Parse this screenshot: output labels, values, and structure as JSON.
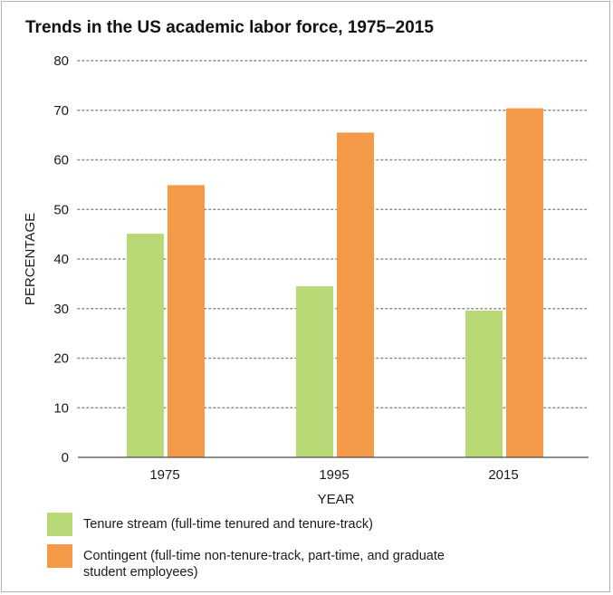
{
  "chart_data": {
    "type": "bar",
    "title": "Trends in the US academic labor force, 1975–2015",
    "xlabel": "YEAR",
    "ylabel": "PERCENTAGE",
    "categories": [
      "1975",
      "1995",
      "2015"
    ],
    "ylim": [
      0,
      80
    ],
    "yticks": [
      "0",
      "10",
      "20",
      "30",
      "40",
      "50",
      "60",
      "70",
      "80"
    ],
    "grid": true,
    "legend_position": "bottom",
    "series": [
      {
        "name": "Tenure stream (full-time tenured and tenure-track)",
        "color": "#b9d977",
        "values": [
          45.1,
          34.5,
          29.6
        ]
      },
      {
        "name": "Contingent (full-time non-tenure-track, part-time, and graduate student employees)",
        "legend_lines": [
          "Contingent (full-time non-tenure-track, part-time, and graduate",
          "student employees)"
        ],
        "color": "#f59a49",
        "values": [
          54.9,
          65.5,
          70.4
        ]
      }
    ]
  }
}
